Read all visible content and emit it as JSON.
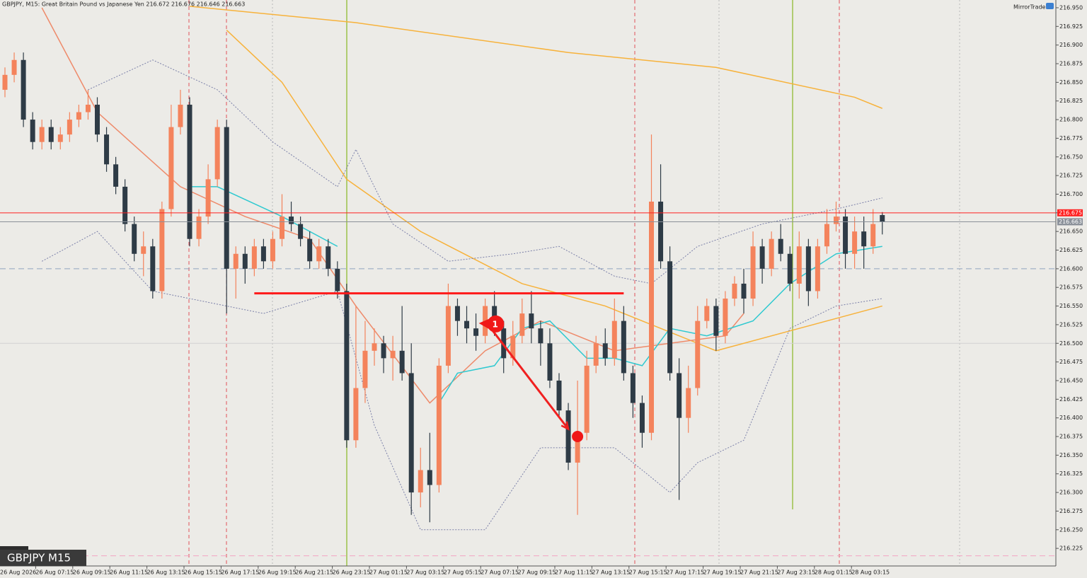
{
  "chart_data": {
    "type": "candlestick",
    "header": "GBPJPY, M15:  Great Britain Pound vs Japanese Yen  216.672 216.676 216.646 216.663",
    "brand": "MirrorTrader",
    "symbol_label": "GBPJPY M15",
    "time_labels": [
      "26 Aug 2026",
      "26 Aug 07:15",
      "26 Aug 09:15",
      "26 Aug 11:15",
      "26 Aug 13:15",
      "26 Aug 15:15",
      "26 Aug 17:15",
      "26 Aug 19:15",
      "26 Aug 21:15",
      "26 Aug 23:15",
      "27 Aug 01:15",
      "27 Aug 03:15",
      "27 Aug 05:15",
      "27 Aug 07:15",
      "27 Aug 09:15",
      "27 Aug 11:15",
      "27 Aug 13:15",
      "27 Aug 15:15",
      "27 Aug 17:15",
      "27 Aug 19:15",
      "27 Aug 21:15",
      "27 Aug 23:15",
      "28 Aug 01:15",
      "28 Aug 03:15"
    ],
    "bull_color": "#f4835c",
    "bear_color": "#2e3b46",
    "open": [
      216.84,
      216.86,
      216.88,
      216.8,
      216.77,
      216.79,
      216.77,
      216.78,
      216.8,
      216.81,
      216.82,
      216.78,
      216.74,
      216.71,
      216.66,
      216.62,
      216.63,
      216.57,
      216.68,
      216.79,
      216.82,
      216.64,
      216.67,
      216.72,
      216.79,
      216.6,
      216.62,
      216.6,
      216.63,
      216.61,
      216.64,
      216.67,
      216.66,
      216.64,
      216.61,
      216.63,
      216.6,
      216.57,
      216.37,
      216.44,
      216.49,
      216.5,
      216.48,
      216.49,
      216.46,
      216.3,
      216.33,
      216.31,
      216.47,
      216.55,
      216.53,
      216.52,
      216.51,
      216.55,
      216.52,
      216.48,
      216.51,
      216.54,
      216.52,
      216.5,
      216.45,
      216.41,
      216.34,
      216.38,
      216.47,
      216.5,
      216.48,
      216.53,
      216.46,
      216.42,
      216.38,
      216.69,
      216.61,
      216.46,
      216.4,
      216.44,
      216.53,
      216.55,
      216.51,
      216.56,
      216.58,
      216.56,
      216.63,
      216.6,
      216.64,
      216.62,
      216.58,
      216.63,
      216.57,
      216.63,
      216.66,
      216.67,
      216.62,
      216.65,
      216.63,
      216.672
    ],
    "high": [
      216.87,
      216.89,
      216.89,
      216.81,
      216.8,
      216.8,
      216.79,
      216.81,
      216.82,
      216.84,
      216.83,
      216.79,
      216.75,
      216.72,
      216.67,
      216.65,
      216.64,
      216.69,
      216.82,
      216.84,
      216.83,
      216.68,
      216.74,
      216.8,
      216.8,
      216.63,
      216.63,
      216.64,
      216.64,
      216.65,
      216.7,
      216.69,
      216.67,
      216.65,
      216.64,
      216.64,
      216.61,
      216.58,
      216.55,
      216.53,
      216.52,
      216.51,
      216.51,
      216.55,
      216.5,
      216.36,
      216.38,
      216.48,
      216.58,
      216.56,
      216.55,
      216.54,
      216.56,
      216.57,
      216.53,
      216.53,
      216.56,
      216.57,
      216.53,
      216.52,
      216.46,
      216.42,
      216.45,
      216.49,
      216.51,
      216.52,
      216.56,
      216.55,
      216.47,
      216.43,
      216.78,
      216.74,
      216.63,
      216.48,
      216.47,
      216.55,
      216.56,
      216.56,
      216.57,
      216.59,
      216.6,
      216.65,
      216.64,
      216.65,
      216.66,
      216.63,
      216.65,
      216.64,
      216.64,
      216.68,
      216.69,
      216.68,
      216.67,
      216.67,
      216.68,
      216.676
    ],
    "low": [
      216.83,
      216.85,
      216.79,
      216.76,
      216.76,
      216.76,
      216.76,
      216.77,
      216.79,
      216.8,
      216.77,
      216.73,
      216.7,
      216.65,
      216.61,
      216.59,
      216.56,
      216.56,
      216.67,
      216.78,
      216.63,
      216.63,
      216.66,
      216.71,
      216.54,
      216.56,
      216.58,
      216.59,
      216.6,
      216.6,
      216.63,
      216.65,
      216.63,
      216.6,
      216.6,
      216.59,
      216.56,
      216.36,
      216.36,
      216.42,
      216.47,
      216.46,
      216.45,
      216.45,
      216.27,
      216.28,
      216.26,
      216.3,
      216.46,
      216.51,
      216.5,
      216.49,
      216.5,
      216.51,
      216.46,
      216.47,
      216.5,
      216.5,
      216.47,
      216.44,
      216.4,
      216.33,
      216.27,
      216.37,
      216.46,
      216.47,
      216.47,
      216.45,
      216.4,
      216.36,
      216.37,
      216.6,
      216.45,
      216.29,
      216.38,
      216.43,
      216.52,
      216.49,
      216.5,
      216.55,
      216.54,
      216.55,
      216.58,
      216.59,
      216.61,
      216.57,
      216.56,
      216.55,
      216.56,
      216.62,
      216.65,
      216.6,
      216.6,
      216.6,
      216.62,
      216.646
    ],
    "close": [
      216.86,
      216.88,
      216.8,
      216.77,
      216.79,
      216.77,
      216.78,
      216.8,
      216.81,
      216.82,
      216.78,
      216.74,
      216.71,
      216.66,
      216.62,
      216.63,
      216.57,
      216.68,
      216.79,
      216.82,
      216.64,
      216.67,
      216.72,
      216.79,
      216.6,
      216.62,
      216.6,
      216.63,
      216.61,
      216.64,
      216.67,
      216.66,
      216.64,
      216.61,
      216.63,
      216.6,
      216.57,
      216.37,
      216.44,
      216.49,
      216.5,
      216.48,
      216.49,
      216.46,
      216.3,
      216.33,
      216.31,
      216.47,
      216.55,
      216.53,
      216.52,
      216.51,
      216.55,
      216.52,
      216.48,
      216.51,
      216.54,
      216.52,
      216.5,
      216.45,
      216.41,
      216.34,
      216.38,
      216.47,
      216.5,
      216.48,
      216.53,
      216.46,
      216.42,
      216.38,
      216.69,
      216.61,
      216.46,
      216.4,
      216.44,
      216.53,
      216.55,
      216.51,
      216.56,
      216.58,
      216.56,
      216.63,
      216.6,
      216.64,
      216.62,
      216.58,
      216.63,
      216.57,
      216.63,
      216.66,
      216.67,
      216.62,
      216.65,
      216.63,
      216.66,
      216.663
    ],
    "overlays": [
      {
        "color": "#f7b23b",
        "style": "solid",
        "x": [
          20,
          38,
          61,
          77,
          92,
          95
        ],
        "values": [
          216.952,
          216.93,
          216.89,
          216.87,
          216.83,
          216.815
        ]
      },
      {
        "color": "#f7b23b",
        "style": "solid",
        "x": [
          24,
          30,
          37,
          45,
          56,
          65,
          73,
          77,
          86,
          95
        ],
        "values": [
          216.92,
          216.85,
          216.72,
          216.65,
          216.58,
          216.55,
          216.51,
          216.49,
          216.52,
          216.55
        ]
      },
      {
        "color": "#ee8a6a",
        "style": "solid",
        "x": [
          4,
          10,
          19,
          26,
          33,
          38,
          46,
          52,
          58,
          66,
          72,
          78,
          80
        ],
        "values": [
          216.95,
          216.81,
          216.71,
          216.67,
          216.64,
          216.55,
          216.42,
          216.49,
          216.53,
          216.49,
          216.5,
          216.51,
          216.54
        ]
      },
      {
        "color": "#2ec9d0",
        "style": "solid",
        "x": [
          20,
          23,
          30,
          36,
          42,
          47,
          49,
          53,
          56,
          59,
          63,
          66,
          69,
          72,
          76,
          81,
          85,
          90,
          95
        ],
        "values": [
          216.71,
          216.71,
          216.67,
          216.63,
          null,
          216.42,
          216.46,
          216.47,
          216.52,
          216.53,
          216.48,
          216.48,
          216.47,
          216.52,
          216.51,
          216.53,
          216.58,
          216.62,
          216.63
        ]
      },
      {
        "color": "#7a7fa8",
        "style": "dotted",
        "x": [
          9,
          16,
          23,
          29,
          36,
          38,
          42,
          48,
          55,
          60,
          66,
          70,
          75,
          82,
          90,
          95
        ],
        "values": [
          216.84,
          216.88,
          216.84,
          216.77,
          216.71,
          216.76,
          216.66,
          216.61,
          216.62,
          216.63,
          216.59,
          216.58,
          216.63,
          216.66,
          216.68,
          216.695
        ]
      },
      {
        "color": "#7a7fa8",
        "style": "dotted",
        "x": [
          4,
          10,
          16,
          24,
          28,
          36,
          40,
          45,
          52,
          58,
          66,
          72,
          75,
          80,
          85,
          90,
          95
        ],
        "values": [
          216.61,
          216.65,
          216.57,
          216.55,
          216.54,
          216.57,
          216.39,
          216.25,
          216.25,
          216.36,
          216.36,
          216.3,
          216.34,
          216.37,
          216.52,
          216.55,
          216.56
        ]
      }
    ],
    "levels": [
      {
        "value": 216.6,
        "color": "#8fa3c0",
        "style": "dashed"
      },
      {
        "value": 216.5,
        "color": "#d2d2d2",
        "style": "solid"
      },
      {
        "value": 216.215,
        "color": "#f3a3c4",
        "style": "dashed"
      }
    ],
    "price_lines": [
      {
        "value": 216.675,
        "color": "#ff2020"
      },
      {
        "value": 216.663,
        "color": "#8a9099"
      }
    ],
    "trendline": {
      "color": "#ff1a1a",
      "x": [
        27,
        67
      ],
      "values": [
        216.567,
        216.567
      ]
    },
    "arrow": {
      "color": "#f02020",
      "x": [
        52,
        61
      ],
      "values": [
        216.53,
        216.385
      ]
    },
    "marker": {
      "label": "1",
      "x": 53,
      "value": 216.525
    },
    "dot": {
      "x": 62,
      "value": 216.375
    },
    "ylim": [
      216.2014,
      216.9604
    ],
    "yticks": [
      {
        "value": 216.95,
        "label": "216.950"
      },
      216.925,
      {
        "value": 216.9,
        "label": "216.900"
      },
      216.875,
      {
        "value": 216.85,
        "label": "216.850"
      },
      216.825,
      {
        "value": 216.8,
        "label": "216.800"
      },
      216.775,
      {
        "value": 216.75,
        "label": "216.750"
      },
      216.725,
      {
        "value": 216.7,
        "label": "216.700"
      },
      216.675,
      {
        "value": 216.65,
        "label": "216.650"
      },
      216.625,
      {
        "value": 216.6,
        "label": "216.600"
      },
      216.575,
      {
        "value": 216.55,
        "label": "216.550"
      },
      216.525,
      {
        "value": 216.5,
        "label": "216.500"
      },
      216.475,
      {
        "value": 216.45,
        "label": "216.450"
      },
      216.425,
      {
        "value": 216.4,
        "label": "216.400"
      },
      216.375,
      {
        "value": 216.35,
        "label": "216.350"
      },
      216.325,
      {
        "value": 216.3,
        "label": "216.300"
      },
      216.275,
      {
        "value": 216.25,
        "label": "216.250"
      },
      216.225
    ]
  }
}
